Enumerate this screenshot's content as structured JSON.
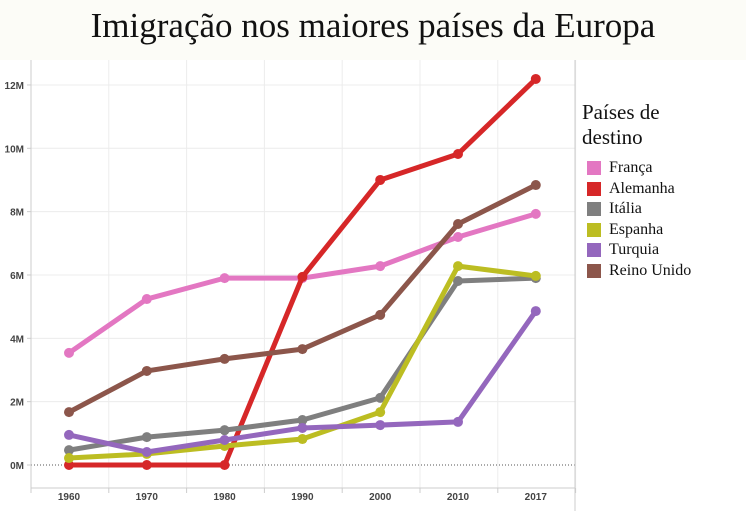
{
  "title": "Imigração nos maiores países da Europa",
  "chart_data": {
    "type": "line",
    "title": "Imigração nos maiores países da Europa",
    "xlabel": "",
    "ylabel": "",
    "categories": [
      "1960",
      "1970",
      "1980",
      "1990",
      "2000",
      "2010",
      "2017"
    ],
    "y_ticks": [
      "0M",
      "2M",
      "4M",
      "6M",
      "8M",
      "10M",
      "12M"
    ],
    "y_tick_values": [
      0,
      2,
      4,
      6,
      8,
      10,
      12
    ],
    "ylim": [
      -0.73,
      12.85
    ],
    "grid": true,
    "legend_title": "Países de destino",
    "legend_position": "right",
    "series": [
      {
        "name": "França",
        "color": "#e377c2",
        "values": [
          3.54,
          5.24,
          5.9,
          5.9,
          6.28,
          7.2,
          7.93
        ]
      },
      {
        "name": "Alemanha",
        "color": "#d62728",
        "values": [
          0,
          0,
          0,
          5.94,
          9.0,
          9.82,
          12.19
        ]
      },
      {
        "name": "Itália",
        "color": "#7f7f7f",
        "values": [
          0.47,
          0.88,
          1.1,
          1.42,
          2.12,
          5.81,
          5.9
        ]
      },
      {
        "name": "Espanha",
        "color": "#bcbd22",
        "values": [
          0.22,
          0.35,
          0.6,
          0.82,
          1.67,
          6.28,
          5.97
        ]
      },
      {
        "name": "Turquia",
        "color": "#9467bd",
        "values": [
          0.95,
          0.41,
          0.79,
          1.17,
          1.26,
          1.36,
          4.86
        ]
      },
      {
        "name": "Reino Unido",
        "color": "#8c564b",
        "values": [
          1.67,
          2.97,
          3.35,
          3.66,
          4.74,
          7.61,
          8.84
        ]
      }
    ]
  }
}
